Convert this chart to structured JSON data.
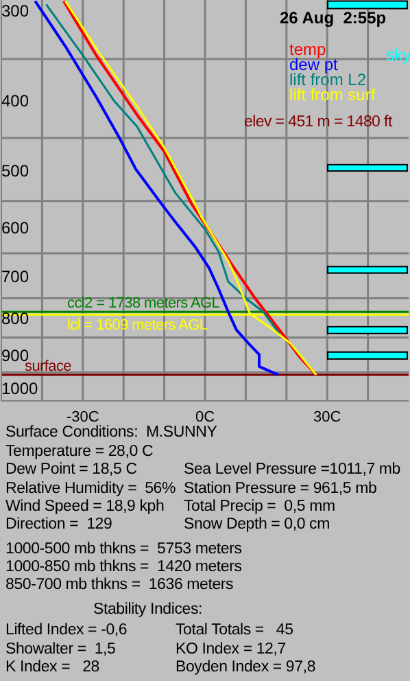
{
  "chart_data": {
    "type": "line",
    "title": "26 Aug  2:55p",
    "xlim": [
      -50,
      50
    ],
    "ylim": [
      1040,
      290
    ],
    "log": "y",
    "grid": true,
    "legend": "top right",
    "xticks": [
      {
        "value": -40,
        "label": null
      },
      {
        "value": -30,
        "label": "-30C"
      },
      {
        "value": -20,
        "label": null
      },
      {
        "value": -10,
        "label": null
      },
      {
        "value": 0,
        "label": "0C"
      },
      {
        "value": 10,
        "label": null
      },
      {
        "value": 20,
        "label": null
      },
      {
        "value": 30,
        "label": "30C"
      },
      {
        "value": 40,
        "label": null
      }
    ],
    "yticks": [
      300,
      {
        "value": 350,
        "label": null
      },
      400,
      {
        "value": 450,
        "label": null
      },
      500,
      {
        "value": 550,
        "label": null
      },
      600,
      {
        "value": 650,
        "label": null
      },
      700,
      {
        "value": 750,
        "label": null
      },
      800,
      {
        "value": 850,
        "label": null
      },
      900,
      {
        "value": 950,
        "label": null
      },
      1000
    ],
    "series": [
      {
        "name": "temp",
        "color": "#ff0000",
        "x": [
          -34.7,
          -26.7,
          -16.7,
          -10,
          -3.3,
          2.3,
          6.7,
          12.3,
          19,
          23.3,
          27.3
        ],
        "values": [
          291,
          346,
          418,
          470,
          555,
          619,
          675,
          750,
          840,
          905,
          957
        ]
      },
      {
        "name": "dew pt",
        "color": "#0000ff",
        "x": [
          -41.7,
          -34.3,
          -26.7,
          -21,
          -17,
          -10.7,
          -7.7,
          -2.3,
          1,
          3.3,
          5.7,
          7.7,
          10.7,
          13.3,
          13.3,
          15.7,
          18
        ],
        "values": [
          291,
          336,
          395,
          450,
          497,
          555,
          584,
          638,
          681,
          727,
          783,
          829,
          866,
          897,
          932,
          945,
          957
        ]
      },
      {
        "name": "lift from L2",
        "color": "#008080",
        "x": [
          -39,
          -30,
          -22.3,
          -16.7,
          -7.3,
          0,
          3.3,
          5.7,
          10,
          14.3,
          18.3
        ],
        "values": [
          294,
          346,
          400,
          434,
          536,
          602,
          646,
          711,
          750,
          783,
          840
        ]
      },
      {
        "name": "lift from surf",
        "color": "#ffff00",
        "x": [
          -34.3,
          -26,
          -16.7,
          -10,
          -2.7,
          -1,
          2.3,
          5.7,
          7.7,
          11,
          16.7,
          21,
          27.3
        ],
        "values": [
          291,
          343,
          407,
          464,
          552,
          577,
          619,
          666,
          705,
          787,
          829,
          866,
          957
        ]
      }
    ],
    "bands": [
      {
        "axis": "y",
        "from": 291,
        "to": 298,
        "label": "sky",
        "color": "#00ffff"
      },
      {
        "axis": "y",
        "from": 490,
        "to": 500,
        "color": "#00ffff"
      },
      {
        "axis": "y",
        "from": 678,
        "to": 692,
        "color": "#00ffff"
      },
      {
        "axis": "y",
        "from": 821,
        "to": 839,
        "color": "#00ffff"
      },
      {
        "axis": "y",
        "from": 890,
        "to": 910,
        "color": "#00ffff"
      }
    ],
    "ref_lines": [
      {
        "axis": "y",
        "value": 783,
        "color": "#008000"
      },
      {
        "axis": "y",
        "value": 790,
        "color": "#ffff00"
      },
      {
        "axis": "y",
        "value": 957,
        "color": "#800000"
      }
    ],
    "annotations": [
      {
        "text": "ccl2 = 1738 meters AGL",
        "y": 783
      },
      {
        "text": "lcl = 1609 meters AGL",
        "y": 790
      },
      {
        "text": "surface",
        "y": 957
      },
      "elev = 451 m = 1480 ft",
      "Surface Conditions:  M.SUNNY",
      "Temperature = 28,0 C",
      "Dew Point = 18,5 C",
      "Sea Level Pressure =1011,7 mb",
      "Relative Humidity =  56%",
      "Station Pressure = 961,5 mb",
      "Wind Speed = 18,9 kph",
      "Total Precip =  0,5 mm",
      "Direction =  129",
      "Snow Depth = 0,0 cm",
      "1000-500 mb thkns =  5753 meters",
      "1000-850 mb thkns =  1420 meters",
      "850-700 mb thkns =  1636 meters",
      "Stability Indices:",
      "Lifted Index = -0,6",
      "Total Totals =   45",
      "Showalter =  1,5",
      "KO Index = 12,7",
      "K Index =   28",
      "Boyden Index = 97,8"
    ]
  }
}
